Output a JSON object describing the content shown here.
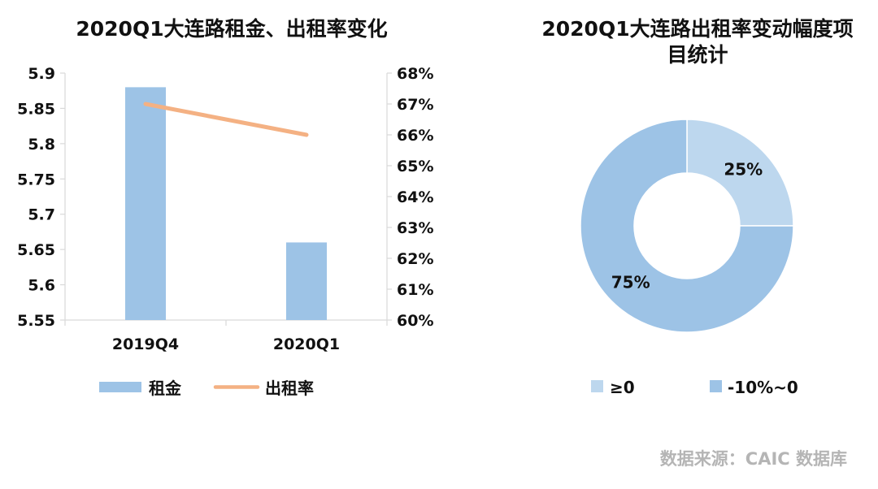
{
  "colors": {
    "bar": "#9dc3e6",
    "line": "#f4b183",
    "slice_light": "#bdd7ee",
    "slice_main": "#9dc3e6",
    "axis": "#d9d9d9"
  },
  "chart_data": [
    {
      "type": "bar",
      "title": "2020Q1大连路租金、出租率变化",
      "categories": [
        "2019Q4",
        "2020Q1"
      ],
      "series": [
        {
          "name": "租金",
          "type": "bar",
          "axis": "left",
          "values": [
            5.88,
            5.66
          ]
        },
        {
          "name": "出租率",
          "type": "line",
          "axis": "right",
          "values": [
            0.67,
            0.66
          ]
        }
      ],
      "ylim_left": [
        5.55,
        5.9
      ],
      "yticks_left": [
        "5.55",
        "5.6",
        "5.65",
        "5.7",
        "5.75",
        "5.8",
        "5.85",
        "5.9"
      ],
      "ylim_right": [
        0.6,
        0.68
      ],
      "yticks_right": [
        "60%",
        "61%",
        "62%",
        "63%",
        "64%",
        "65%",
        "66%",
        "67%",
        "68%"
      ],
      "legend": "bottom"
    },
    {
      "type": "pie",
      "title_lines": [
        "2020Q1大连路出租率变动幅度项",
        "目统计"
      ],
      "labels": [
        "≥0",
        "-10%~0"
      ],
      "values": [
        25,
        75
      ],
      "value_labels": [
        "25%",
        "75%"
      ],
      "legend": "bottom"
    }
  ],
  "source": "数据来源：CAIC 数据库"
}
